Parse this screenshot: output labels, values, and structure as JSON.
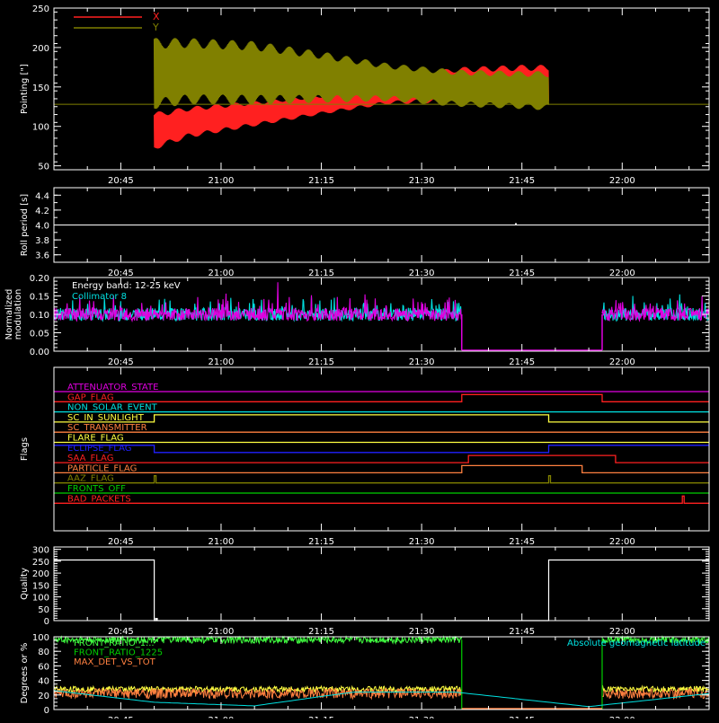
{
  "colors": {
    "red": "#ff2020",
    "olive": "#808000",
    "white": "#ffffff",
    "cyan": "#00e0e0",
    "magenta": "#e000e0",
    "orange": "#ff8040",
    "yellow": "#ffff40",
    "blue": "#2020ff",
    "green": "#00d000",
    "lime": "#40ff40"
  },
  "chart_data": [
    {
      "type": "line",
      "ylabel": "Pointing [\"]",
      "ylim": [
        45,
        250
      ],
      "yticks": [
        50,
        100,
        150,
        200,
        250
      ],
      "xlim": [
        "20:35",
        "22:13"
      ],
      "xticks": [
        "20:45",
        "21:00",
        "21:15",
        "21:30",
        "21:45",
        "22:00"
      ],
      "legend": [
        {
          "name": "X",
          "color": "red"
        },
        {
          "name": "Y",
          "color": "olive"
        }
      ],
      "legend_position": "top-left",
      "reference_line": 128,
      "active_range": [
        "20:50",
        "21:49"
      ],
      "series": [
        {
          "name": "X",
          "envelope_t": [
            "20:50",
            "20:55",
            "21:05",
            "21:15",
            "21:25",
            "21:35",
            "21:45",
            "21:49"
          ],
          "upper": [
            118,
            125,
            132,
            140,
            158,
            175,
            178,
            178
          ],
          "lower": [
            70,
            85,
            100,
            115,
            128,
            130,
            128,
            125
          ]
        },
        {
          "name": "Y",
          "envelope_t": [
            "20:50",
            "20:55",
            "21:05",
            "21:15",
            "21:25",
            "21:35",
            "21:45",
            "21:49"
          ],
          "upper": [
            212,
            212,
            208,
            195,
            180,
            172,
            170,
            170
          ],
          "lower": [
            122,
            128,
            128,
            130,
            132,
            125,
            122,
            120
          ]
        }
      ]
    },
    {
      "type": "line",
      "ylabel": "Roll period [s]",
      "ylim": [
        3.5,
        4.5
      ],
      "yticks": [
        "3.6",
        "3.8",
        "4.0",
        "4.2",
        "4.4"
      ],
      "xticks": [
        "20:45",
        "21:00",
        "21:15",
        "21:30",
        "21:45",
        "22:00"
      ],
      "series": [
        {
          "name": "",
          "x": [
            "20:35",
            "22:13"
          ],
          "y": [
            4.0,
            4.0
          ]
        }
      ]
    },
    {
      "type": "bar",
      "ylabel": "Normalized modulation",
      "ylim": [
        0,
        0.2
      ],
      "yticks": [
        "0.00",
        "0.05",
        "0.10",
        "0.15",
        "0.20"
      ],
      "xticks": [
        "20:45",
        "21:00",
        "21:15",
        "21:30",
        "21:45",
        "22:00"
      ],
      "annotations": [
        "Energy band: 12-25 keV",
        "Collimator 8"
      ],
      "data_ranges": [
        [
          "20:35",
          "21:36"
        ],
        [
          "21:57",
          "22:13"
        ]
      ],
      "baseline": 0.1
    },
    {
      "type": "table",
      "ylabel": "Flags",
      "xticks": [
        "20:45",
        "21:00",
        "21:15",
        "21:30",
        "21:45",
        "22:00"
      ],
      "flags": [
        {
          "name": "ATTENUATOR_STATE",
          "color": "magenta",
          "high": []
        },
        {
          "name": "GAP_FLAG",
          "color": "red",
          "high": [
            [
              "21:36",
              "21:57"
            ]
          ]
        },
        {
          "name": "NON_SOLAR_EVENT",
          "color": "cyan",
          "high": []
        },
        {
          "name": "SC_IN_SUNLIGHT",
          "color": "yellow",
          "high": [
            [
              "20:50",
              "21:49"
            ]
          ]
        },
        {
          "name": "SC_TRANSMITTER",
          "color": "orange",
          "high": []
        },
        {
          "name": "FLARE_FLAG",
          "color": "yellow",
          "high": []
        },
        {
          "name": "ECLIPSE_FLAG",
          "color": "blue",
          "high": [
            [
              "20:35",
              "20:50"
            ],
            [
              "21:49",
              "22:13"
            ]
          ]
        },
        {
          "name": "SAA_FLAG",
          "color": "red",
          "high": [
            [
              "21:37",
              "21:59"
            ]
          ]
        },
        {
          "name": "PARTICLE_FLAG",
          "color": "orange",
          "high": [
            [
              "21:36",
              "21:54"
            ]
          ]
        },
        {
          "name": "AAZ_FLAG",
          "color": "olive",
          "high": [
            [
              "20:50",
              "20:50"
            ],
            [
              "21:49",
              "21:49"
            ]
          ]
        },
        {
          "name": "FRONTS_OFF",
          "color": "green",
          "high": []
        },
        {
          "name": "BAD_PACKETS",
          "color": "red",
          "high": [
            [
              "22:09",
              "22:09"
            ]
          ]
        }
      ]
    },
    {
      "type": "line",
      "ylabel": "Quality",
      "ylim": [
        0,
        310
      ],
      "yticks": [
        0,
        50,
        100,
        150,
        200,
        250,
        300
      ],
      "xticks": [
        "20:45",
        "21:00",
        "21:15",
        "21:30",
        "21:45",
        "22:00"
      ],
      "series": [
        {
          "name": "",
          "x": [
            "20:35",
            "20:50",
            "20:50",
            "21:49",
            "21:49",
            "22:13"
          ],
          "y": [
            255,
            255,
            0,
            0,
            255,
            255
          ]
        }
      ]
    },
    {
      "type": "line",
      "ylabel": "Degrees or %",
      "ylim": [
        0,
        100
      ],
      "yticks": [
        0,
        20,
        40,
        60,
        80,
        100
      ],
      "xticks": [
        "20:45",
        "21:00",
        "21:15",
        "21:30",
        "21:45",
        "22:00"
      ],
      "legend": [
        {
          "name": "FRONT_RATIO_1...",
          "color": "lime"
        },
        {
          "name": "FRONT_RATIO_1225",
          "color": "green"
        },
        {
          "name": "MAX_DET_VS_TOT",
          "color": "orange"
        }
      ],
      "right_label": "Absolute geomagnetic latitude",
      "data_ranges": [
        [
          "20:35",
          "21:36"
        ],
        [
          "21:57",
          "22:13"
        ]
      ],
      "series": [
        {
          "name": "FRONT_RATIO_1225",
          "level": 96
        },
        {
          "name": "MAX_DET_VS_TOT",
          "level": 22
        },
        {
          "name": "yellow",
          "level": 28
        },
        {
          "name": "Absolute geomagnetic latitude",
          "x": [
            "20:35",
            "20:50",
            "21:05",
            "21:15",
            "21:20",
            "21:35",
            "21:45",
            "21:55",
            "22:13"
          ],
          "y": [
            26,
            10,
            5,
            18,
            24,
            24,
            14,
            4,
            22
          ]
        }
      ]
    }
  ]
}
